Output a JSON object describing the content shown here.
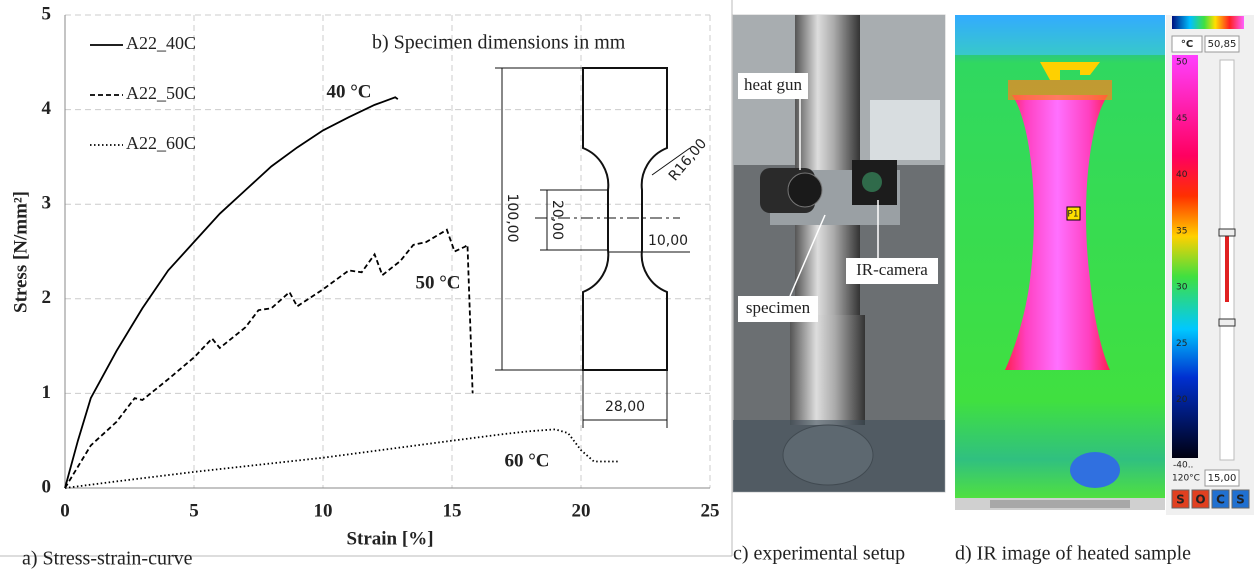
{
  "chart_data": {
    "type": "line",
    "caption": "a) Stress-strain-curve",
    "xlabel": "Strain [%]",
    "ylabel": "Stress [N/mm²]",
    "xlim": [
      0,
      25
    ],
    "ylim": [
      0,
      5
    ],
    "xticks": [
      0,
      5,
      10,
      15,
      20,
      25
    ],
    "yticks": [
      0,
      1,
      2,
      3,
      4,
      5
    ],
    "grid": true,
    "legend": "upper left",
    "series": [
      {
        "name": "A22_40C",
        "color": "#000000",
        "style": "solid",
        "x": [
          0,
          0.5,
          1,
          2,
          3,
          4,
          5,
          6,
          7,
          8,
          9,
          10,
          11,
          12,
          12.8,
          12.9
        ],
        "values": [
          0,
          0.5,
          0.95,
          1.45,
          1.9,
          2.3,
          2.6,
          2.9,
          3.15,
          3.4,
          3.6,
          3.78,
          3.92,
          4.05,
          4.13,
          4.11
        ]
      },
      {
        "name": "A22_50C",
        "color": "#000000",
        "style": "dashed",
        "x": [
          0,
          1,
          2,
          2.7,
          3,
          4,
          5,
          5.7,
          6,
          7,
          7.5,
          8,
          8.7,
          9,
          10,
          11,
          11.5,
          12,
          12.3,
          13,
          13.5,
          14,
          14.8,
          15.1,
          15.5,
          15.6,
          15.8
        ],
        "values": [
          0,
          0.45,
          0.7,
          0.95,
          0.93,
          1.15,
          1.38,
          1.58,
          1.48,
          1.7,
          1.88,
          1.9,
          2.07,
          1.92,
          2.1,
          2.3,
          2.28,
          2.47,
          2.25,
          2.4,
          2.57,
          2.6,
          2.73,
          2.5,
          2.55,
          2.57,
          1.0
        ]
      },
      {
        "name": "A22_60C",
        "color": "#000000",
        "style": "dotted",
        "x": [
          0,
          2,
          5,
          10,
          15,
          17,
          18,
          19,
          19.5,
          20,
          20.5,
          21.5
        ],
        "values": [
          0,
          0.07,
          0.17,
          0.32,
          0.5,
          0.57,
          0.6,
          0.62,
          0.58,
          0.4,
          0.28,
          0.28
        ]
      }
    ],
    "annotations": [
      "40 °C",
      "50 °C",
      "60 °C"
    ]
  },
  "specimen": {
    "title": "b) Specimen dimensions in mm",
    "length": "100,00",
    "gauge": "20,00",
    "neck_width": "10,00",
    "width": "28,00",
    "radius": "R16,00"
  },
  "setup": {
    "caption": "c) experimental setup",
    "labels": [
      "heat gun",
      "IR-camera",
      "specimen"
    ]
  },
  "ir_image": {
    "caption": "d) IR image of heated sample",
    "unit": "°C",
    "max_field": "50,85",
    "min_field": "15,00",
    "scale_ticks": [
      50,
      45,
      40,
      35,
      30,
      25,
      20
    ],
    "range_low": "-40..",
    "range_high": "120°C",
    "point": "P1",
    "buttons": [
      "S",
      "O",
      "C",
      "S"
    ]
  }
}
